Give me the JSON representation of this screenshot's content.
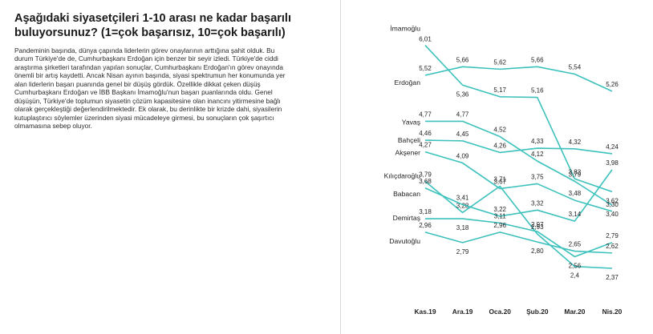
{
  "title": "Aşağıdaki siyasetçileri 1-10 arası ne kadar başarılı buluyorsunuz? (1=çok başarısız, 10=çok başarılı)",
  "body": "Pandeminin başında, dünya çapında liderlerin görev onaylarının arttığına şahit olduk. Bu durum Türkiye'de de, Cumhurbaşkanı Erdoğan için benzer bir seyir izledi. Türkiye'de ciddi araştırma şirketleri tarafından yapılan sonuçlar, Cumhurbaşkanı Erdoğan'ın görev onayında önemli bir artış kaydetti. Ancak Nisan ayının başında, siyasi spektrumun her konumunda yer alan liderlerin başarı puanında genel bir düşüş gördük. Özellikle dikkat çeken düşüş Cumhurbaşkanı Erdoğan ve İBB Başkanı İmamoğlu'nun başarı puanlarında oldu. Genel düşüşün, Türkiye'de toplumun siyasetin çözüm kapasitesine olan inancını yitirmesine bağlı olarak gerçekleştiği değerlendirilmektedir. Ek olarak, bu derinlikte bir krizde dahi, siyasilerin kutuplaştırıcı söylemler üzerinden siyasi mücadeleye girmesi, bu sonuçların çok şaşırtıcı olmamasına sebep oluyor.",
  "chart_data": {
    "type": "line",
    "title": "",
    "xlabel": "",
    "ylabel": "",
    "x": [
      "Kas.19",
      "Ara.19",
      "Oca.20",
      "Şub.20",
      "Mar.20",
      "Nis.20"
    ],
    "ylim": [
      2.2,
      6.2
    ],
    "grid": false,
    "legend": "inline-left",
    "line_color": "#3cc1bc",
    "series": [
      {
        "name": "İmamoğlu",
        "values": [
          6.01,
          5.36,
          5.17,
          5.16,
          3.83,
          3.62
        ],
        "labels": [
          "6,01",
          "5,36",
          "5,17",
          "5,16",
          "3,83",
          "3,62"
        ]
      },
      {
        "name": "Erdoğan",
        "values": [
          5.52,
          5.66,
          5.62,
          5.66,
          5.54,
          5.26
        ],
        "labels": [
          "5,52",
          "5,66",
          "5,62",
          "5,66",
          "5,54",
          "5,26"
        ]
      },
      {
        "name": "Yavaş",
        "values": [
          4.77,
          4.77,
          4.52,
          4.12,
          3.79,
          3.4
        ],
        "labels": [
          "4,77",
          "4,77",
          "4,52",
          "4,12",
          "3,79",
          "3,40"
        ]
      },
      {
        "name": "Bahçeli",
        "values": [
          4.46,
          4.45,
          4.26,
          4.33,
          4.32,
          4.24
        ],
        "labels": [
          "4,46",
          "4,45",
          "4,26",
          "4,33",
          "4,32",
          "4,24"
        ]
      },
      {
        "name": "Akşener",
        "values": [
          4.27,
          4.09,
          3.67,
          3.75,
          3.48,
          3.3
        ],
        "labels": [
          "4,27",
          "4,09",
          "3,67",
          "3,75",
          "3,48",
          "3,30"
        ]
      },
      {
        "name": "Kılıçdaroğlu",
        "values": [
          3.79,
          3.28,
          3.71,
          2.93,
          2.4,
          2.37
        ],
        "labels": [
          "3,79",
          "3,28",
          "3,71",
          "2,93",
          "2,4",
          "2,37"
        ]
      },
      {
        "name": "Babacan",
        "values": [
          3.68,
          3.41,
          3.22,
          3.32,
          3.14,
          3.98
        ],
        "labels": [
          "3,68",
          "3,41",
          "3,22",
          "3,32",
          "3,14",
          "3,98"
        ]
      },
      {
        "name": "Demirtaş",
        "values": [
          3.18,
          3.18,
          3.11,
          2.97,
          2.56,
          2.79
        ],
        "labels": [
          "3,18",
          "3,18",
          "3,11",
          "2,97",
          "2,56",
          "2,79"
        ]
      },
      {
        "name": "Davutoğlu",
        "values": [
          2.96,
          2.79,
          2.96,
          2.8,
          2.65,
          2.62
        ],
        "labels": [
          "2,96",
          "2,79",
          "2,96",
          "2,80",
          "2,65",
          "2,62"
        ]
      }
    ]
  }
}
